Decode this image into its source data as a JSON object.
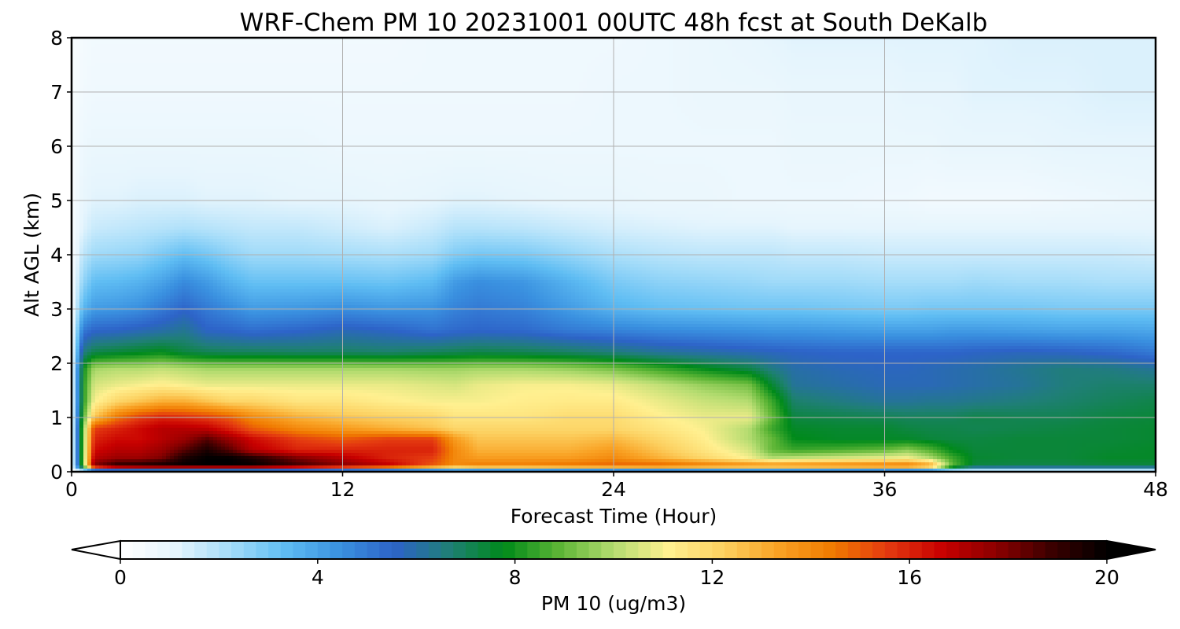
{
  "chart_data": {
    "type": "heatmap",
    "title": "WRF-Chem PM 10  20231001 00UTC 48h fcst at South DeKalb",
    "xlabel": "Forecast Time (Hour)",
    "ylabel": "Alt AGL (km)",
    "xlim": [
      0,
      48
    ],
    "ylim": [
      0,
      8
    ],
    "xticks": [
      "0",
      "12",
      "24",
      "36",
      "48"
    ],
    "yticks": [
      "0",
      "1",
      "2",
      "3",
      "4",
      "5",
      "6",
      "7",
      "8"
    ],
    "grid": true,
    "colorbar": {
      "label": "PM 10  (ug/m3)",
      "range": [
        0,
        20
      ],
      "ticks": [
        "0",
        "4",
        "8",
        "12",
        "16",
        "20"
      ],
      "extend": "both",
      "colors": [
        "#ffffff",
        "#e6f5fd",
        "#a4dcf9",
        "#5fbdf3",
        "#3a91e0",
        "#2d63c8",
        "#1f7f76",
        "#008a1a",
        "#5cb535",
        "#b4dc70",
        "#fff090",
        "#fcd060",
        "#f9a224",
        "#f07a00",
        "#e43a10",
        "#c80000",
        "#8a0000",
        "#3a0000",
        "#000000"
      ]
    },
    "x_hours": [
      0,
      0.5,
      1,
      2,
      3,
      4,
      5,
      6,
      7,
      8,
      10,
      12,
      14,
      16,
      17,
      18,
      20,
      22,
      24,
      26,
      28,
      30,
      31,
      32,
      34,
      36,
      37,
      38,
      39,
      40,
      42,
      44,
      46,
      48
    ],
    "y_km": [
      0,
      0.1,
      0.25,
      0.4,
      0.6,
      0.8,
      1,
      1.3,
      1.6,
      1.9,
      2.2,
      2.6,
      3,
      3.5,
      4,
      4.5,
      5,
      6,
      7,
      8
    ],
    "z": [
      [
        0,
        0,
        0,
        0,
        0,
        0,
        0,
        0,
        0,
        0,
        0,
        0,
        0,
        0,
        0,
        0,
        0,
        0,
        0,
        0,
        0,
        0,
        0,
        0,
        0,
        0,
        0,
        0,
        0,
        0,
        0,
        0,
        0,
        0
      ],
      [
        0.5,
        9,
        18,
        19.5,
        19.8,
        20,
        20,
        20,
        20,
        20,
        19,
        18,
        17,
        15,
        14,
        14.5,
        14.5,
        14.8,
        15,
        15.2,
        14.8,
        14.5,
        14.5,
        14.6,
        14.8,
        15,
        15,
        14,
        9,
        7.3,
        7.2,
        7.2,
        7.3,
        7.3
      ],
      [
        0.5,
        9,
        17,
        17.5,
        17.5,
        18,
        19.5,
        20,
        20,
        19.5,
        18,
        17,
        16,
        15.5,
        14,
        13.5,
        13.5,
        13.5,
        14,
        13,
        12,
        11,
        10,
        10.2,
        10.5,
        10.8,
        11,
        10,
        8.5,
        7.5,
        7.4,
        7.4,
        7.6,
        7.6
      ],
      [
        0.5,
        9,
        16.5,
        17,
        17,
        17.5,
        18.5,
        19.5,
        18.5,
        17,
        16,
        16,
        16,
        16,
        14,
        13,
        13,
        13,
        13.5,
        12.5,
        11.5,
        10.5,
        9,
        8.5,
        8.7,
        9,
        9.5,
        8.8,
        7.8,
        7.4,
        7.4,
        7.4,
        7.5,
        7.6
      ],
      [
        0.5,
        9,
        16,
        16.5,
        16.5,
        17,
        17.5,
        18.5,
        17.5,
        16.5,
        15.5,
        15,
        15.5,
        15.5,
        13.5,
        12.5,
        12.5,
        12.5,
        12.8,
        12,
        11.2,
        10,
        9,
        7.8,
        7.6,
        7.6,
        7.6,
        7.4,
        7.3,
        7.3,
        7.4,
        7.4,
        7.4,
        7.5
      ],
      [
        0.5,
        9,
        15.5,
        16,
        16.5,
        17,
        17,
        16.8,
        16,
        15,
        14,
        13.5,
        13,
        12.5,
        12,
        12,
        12,
        12,
        12,
        11.5,
        11,
        10,
        8.5,
        7.6,
        7.5,
        7.5,
        7.3,
        7.2,
        7.2,
        7.1,
        7.2,
        7.3,
        7.4,
        7.5
      ],
      [
        0.5,
        8.5,
        12.5,
        14.5,
        15.5,
        16,
        15.8,
        15.5,
        15,
        14,
        13,
        12.5,
        12.2,
        12,
        11.5,
        11.5,
        11.5,
        11.8,
        11.8,
        11.2,
        10.8,
        10.8,
        9,
        7.3,
        7.2,
        7.1,
        7,
        7,
        7,
        7.2,
        7.1,
        7.1,
        7.3,
        7.4
      ],
      [
        0.5,
        8,
        11,
        12,
        12.5,
        13,
        13,
        12.5,
        12,
        12,
        11.5,
        11.5,
        11.2,
        11,
        11,
        11,
        11.2,
        11.3,
        11.3,
        10.8,
        10.3,
        10,
        8.5,
        6.8,
        6.5,
        6.2,
        6.2,
        6.3,
        6.3,
        6.4,
        6.6,
        6.8,
        7,
        7.2
      ],
      [
        0.5,
        8,
        10.5,
        10.8,
        11,
        11.2,
        11,
        10.8,
        10.8,
        10.8,
        10.8,
        10.8,
        10.8,
        10.6,
        10.5,
        10.8,
        11,
        11,
        10.8,
        10.2,
        9.6,
        9.2,
        7.5,
        6.2,
        6,
        5.8,
        5.8,
        5.8,
        5.9,
        6,
        6.2,
        6.6,
        6.8,
        6.8
      ],
      [
        0.5,
        7.8,
        9.8,
        10,
        10,
        10.2,
        10,
        9.8,
        9.8,
        9.8,
        9.8,
        9.8,
        9.8,
        9.7,
        9.7,
        9.8,
        9.8,
        9.6,
        9.2,
        8.5,
        7.8,
        7.2,
        6.5,
        6,
        5.8,
        5.7,
        5.7,
        5.8,
        5.9,
        6,
        6.3,
        6.6,
        6.5,
        6.2
      ],
      [
        0.5,
        6.5,
        7.2,
        7.4,
        7.6,
        7.8,
        7.3,
        7.1,
        7,
        7,
        6.9,
        6.9,
        6.8,
        7,
        7.1,
        7.2,
        7.1,
        6.9,
        6.6,
        6.2,
        6,
        5.8,
        5.7,
        5.6,
        5.5,
        5.5,
        5.5,
        5.5,
        5.5,
        5.6,
        5.7,
        5.6,
        5.4,
        5
      ],
      [
        0.5,
        5,
        5.5,
        5.6,
        5.8,
        6,
        6.3,
        5.6,
        5.5,
        5.3,
        5.5,
        5.8,
        5.6,
        5.2,
        5.4,
        5.5,
        5.4,
        5,
        4.8,
        4.6,
        4.5,
        4.4,
        4.3,
        4.3,
        4.2,
        4.1,
        4.1,
        4.1,
        4.2,
        4.2,
        4.1,
        4,
        4,
        3.9
      ],
      [
        0.4,
        3.5,
        4.2,
        4.3,
        4.5,
        5,
        5.5,
        5,
        4.6,
        4.2,
        4.3,
        4.5,
        4.3,
        4.4,
        4.8,
        5,
        4.8,
        4.2,
        3.6,
        3.3,
        3.2,
        3.1,
        3.1,
        3.1,
        3,
        2.9,
        2.9,
        3,
        3,
        3,
        3,
        2.9,
        2.9,
        2.9
      ],
      [
        0.4,
        2.5,
        3.3,
        3.4,
        3.6,
        4,
        4.6,
        4.2,
        3.6,
        3.2,
        3.2,
        3.2,
        3.1,
        3.4,
        4.2,
        4.5,
        4.3,
        3.6,
        2.9,
        2.6,
        2.5,
        2.4,
        2.3,
        2.3,
        2.3,
        2.2,
        2.2,
        2.2,
        2.2,
        2.3,
        2.2,
        2.2,
        2.1,
        2.1
      ],
      [
        0.3,
        1.8,
        2.3,
        2.4,
        2.5,
        2.9,
        3.3,
        3,
        2.6,
        2.3,
        2.3,
        2.2,
        2.1,
        2.3,
        2.8,
        3,
        2.9,
        2.5,
        2.1,
        1.9,
        1.8,
        1.8,
        1.8,
        1.7,
        1.7,
        1.6,
        1.6,
        1.6,
        1.6,
        1.6,
        1.6,
        1.6,
        1.6,
        1.5
      ],
      [
        0.3,
        1.2,
        1.6,
        1.7,
        1.8,
        1.9,
        2,
        1.9,
        1.8,
        1.7,
        1.7,
        1.5,
        1.3,
        1.6,
        1.9,
        1.9,
        1.8,
        1.6,
        1.4,
        1.3,
        1.2,
        1.2,
        1.2,
        1.1,
        1.1,
        1.1,
        1.1,
        1.1,
        1.1,
        1.1,
        1.1,
        1.1,
        1.1,
        1.1
      ],
      [
        0.3,
        1,
        1.2,
        1.2,
        1.3,
        1.3,
        1.3,
        1.2,
        1.2,
        1.2,
        1.1,
        1.1,
        1,
        1.1,
        1.2,
        1.2,
        1.1,
        1,
        1,
        0.9,
        0.9,
        0.8,
        0.8,
        0.8,
        0.8,
        0.7,
        0.7,
        0.6,
        0.6,
        0.6,
        0.6,
        0.7,
        0.8,
        0.9
      ],
      [
        0.3,
        0.8,
        0.9,
        0.9,
        0.9,
        0.9,
        0.9,
        0.9,
        0.9,
        0.9,
        0.9,
        0.8,
        0.8,
        0.8,
        0.8,
        0.8,
        0.8,
        0.8,
        0.8,
        0.8,
        0.8,
        0.8,
        0.8,
        0.9,
        0.9,
        0.9,
        0.9,
        0.9,
        1,
        1,
        1,
        1.1,
        1.1,
        1.1
      ],
      [
        0.3,
        0.6,
        0.7,
        0.7,
        0.7,
        0.7,
        0.7,
        0.7,
        0.7,
        0.7,
        0.7,
        0.7,
        0.7,
        0.7,
        0.7,
        0.7,
        0.7,
        0.7,
        0.8,
        0.8,
        0.9,
        0.9,
        0.9,
        1,
        1,
        1,
        1.1,
        1.1,
        1.1,
        1.2,
        1.2,
        1.2,
        1.3,
        1.3
      ],
      [
        0.3,
        0.5,
        0.6,
        0.6,
        0.6,
        0.6,
        0.6,
        0.6,
        0.6,
        0.6,
        0.6,
        0.6,
        0.6,
        0.7,
        0.7,
        0.7,
        0.7,
        0.7,
        0.7,
        0.8,
        0.9,
        1,
        1.1,
        1.2,
        1.2,
        1.2,
        1.2,
        1.2,
        1.2,
        1.2,
        1.3,
        1.3,
        1.3,
        1.3
      ]
    ]
  }
}
